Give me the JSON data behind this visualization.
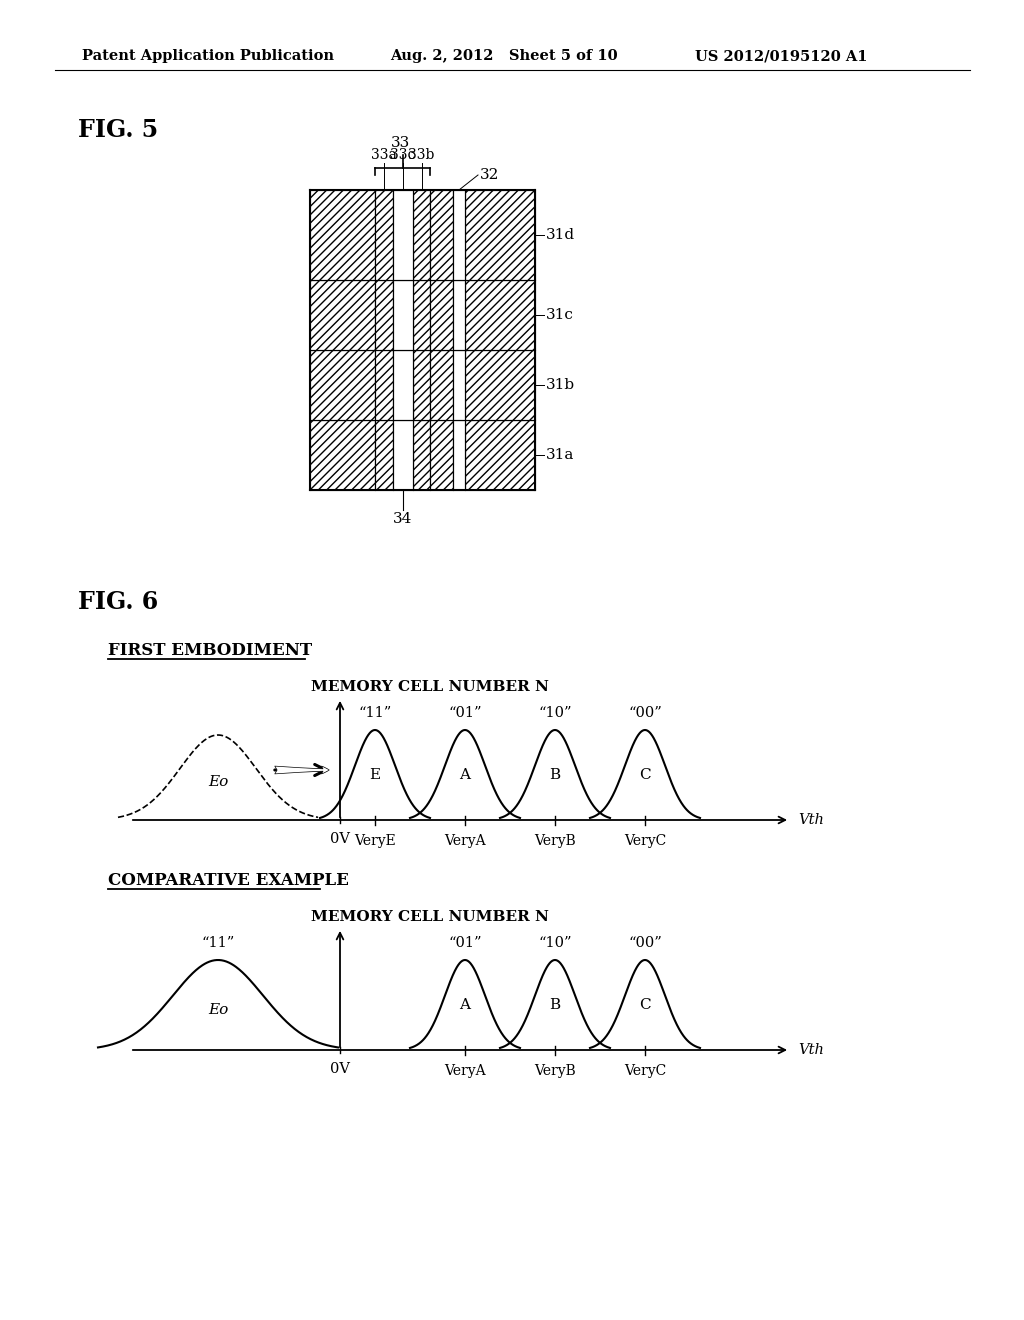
{
  "header_left": "Patent Application Publication",
  "header_mid": "Aug. 2, 2012   Sheet 5 of 10",
  "header_right": "US 2012/0195120 A1",
  "fig5_label": "FIG. 5",
  "fig6_label": "FIG. 6",
  "fig6_first_title": "FIRST EMBODIMENT",
  "fig6_first_subtitle": "MEMORY CELL NUMBER N",
  "fig6_first_labels": [
    "“11”",
    "“01”",
    "“10”",
    "“00”"
  ],
  "fig6_first_peaks": [
    "E",
    "A",
    "B",
    "C"
  ],
  "fig6_first_verify": [
    "VeryE",
    "VeryA",
    "VeryB",
    "VeryC"
  ],
  "fig6_first_Eo": "Eo",
  "fig6_first_0V": "0V",
  "fig6_first_Vth": "Vth",
  "fig6_comp_title": "COMPARATIVE EXAMPLE",
  "fig6_comp_subtitle": "MEMORY CELL NUMBER N",
  "fig6_comp_labels_11": "“11”",
  "fig6_comp_labels_rest": [
    "“01”",
    "“10”",
    "“00”"
  ],
  "fig6_comp_peaks": [
    "A",
    "B",
    "C"
  ],
  "fig6_comp_verify": [
    "VeryA",
    "VeryB",
    "VeryC"
  ],
  "fig6_comp_Eo": "Eo",
  "fig6_comp_0V": "0V",
  "fig6_comp_Vth": "Vth",
  "bg_color": "#ffffff"
}
